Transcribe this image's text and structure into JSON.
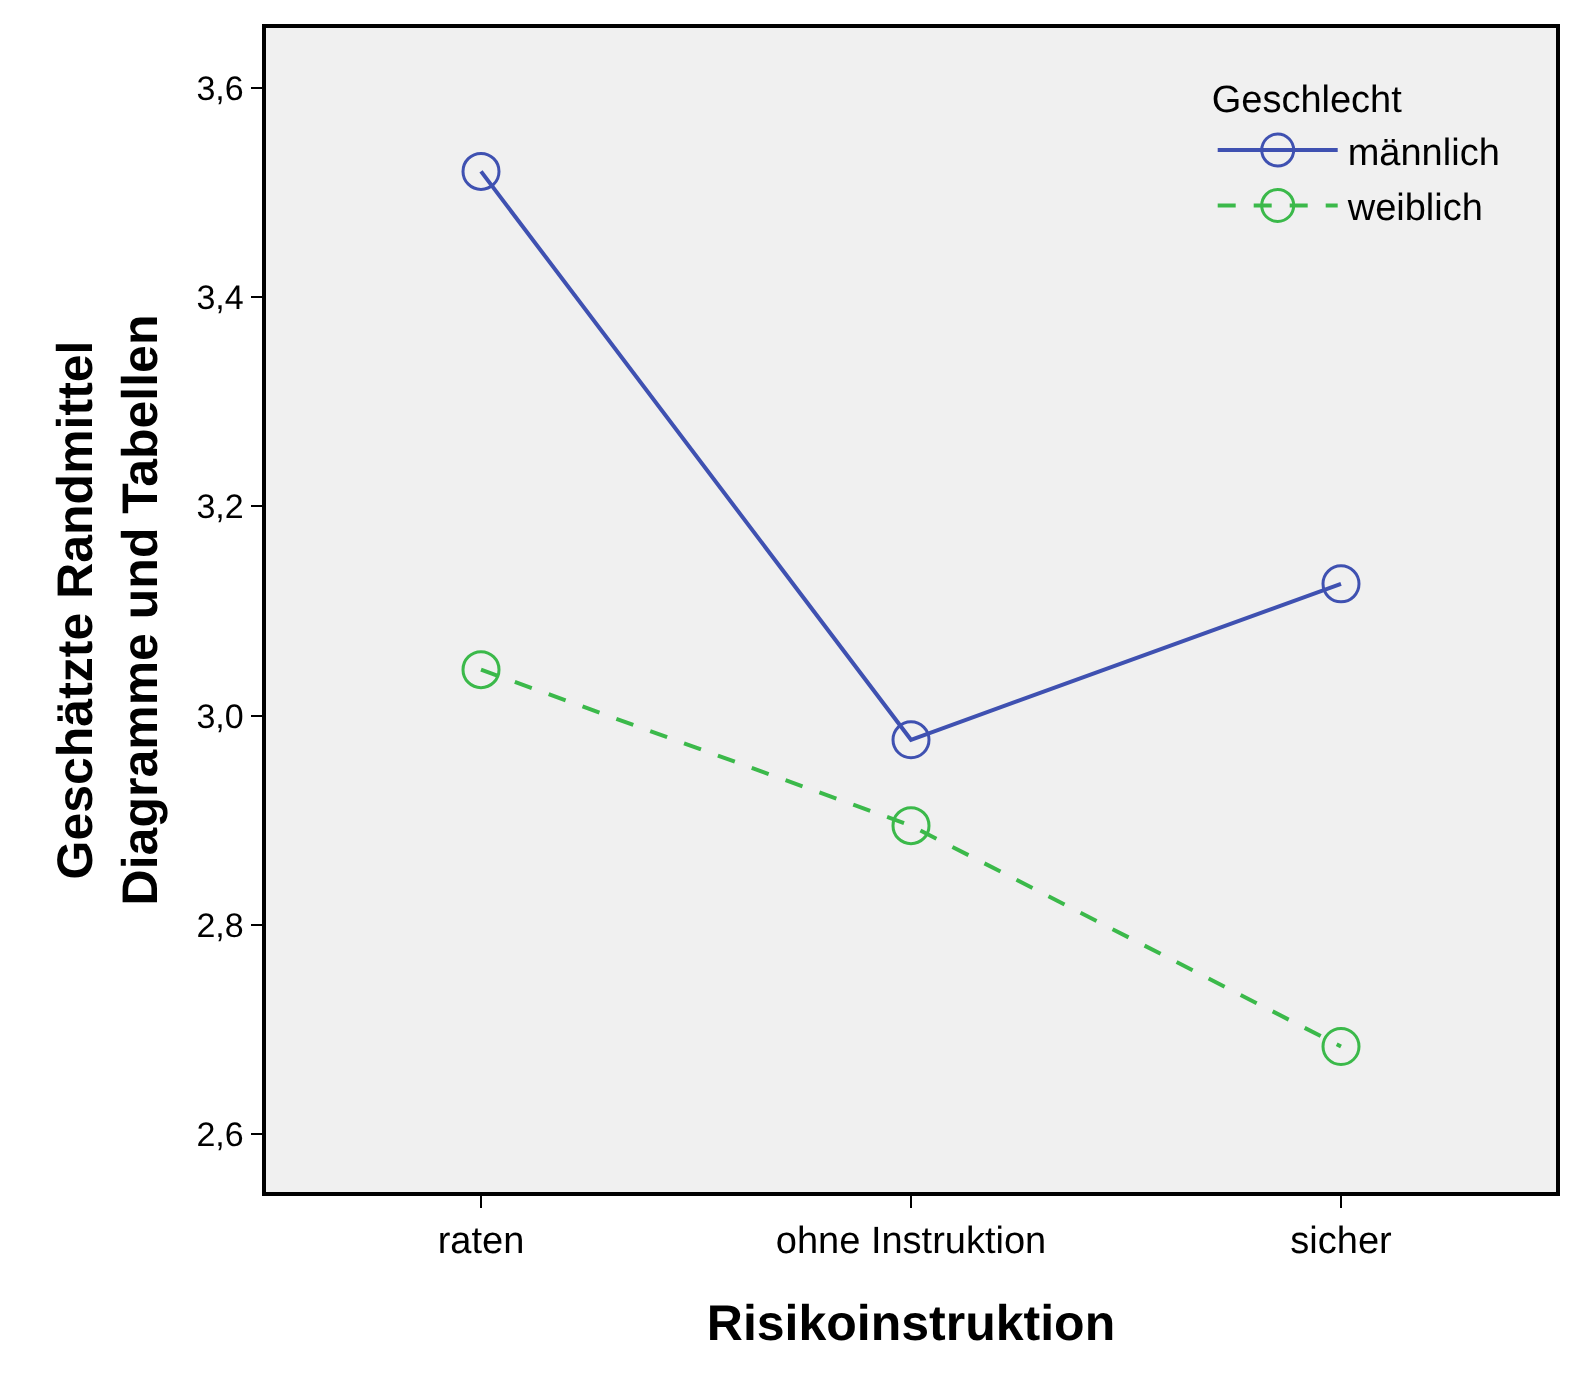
{
  "chart_data": {
    "type": "line",
    "xlabel": "Risikoinstruktion",
    "ylabel": "Geschätzte Randmittel\nDiagramme und Tabellen",
    "legend_title": "Geschlecht",
    "legend": "top right",
    "grid": false,
    "marker": "circle",
    "categories": [
      "raten",
      "ohne Instruktion",
      "sicher"
    ],
    "ylim": [
      2.545,
      3.657
    ],
    "yticks": [
      {
        "value": 2.6,
        "label": "2,6"
      },
      {
        "value": 2.8,
        "label": "2,8"
      },
      {
        "value": 3.0,
        "label": "3,0"
      },
      {
        "value": 3.2,
        "label": "3,2"
      },
      {
        "value": 3.4,
        "label": "3,4"
      },
      {
        "value": 3.6,
        "label": "3,6"
      }
    ],
    "series": [
      {
        "name": "männlich",
        "color": "#3f51b1",
        "values": [
          3.52,
          2.977,
          3.126
        ],
        "line_style": "solid"
      },
      {
        "name": "weiblich",
        "color": "#3bb94a",
        "values": [
          3.044,
          2.895,
          2.684
        ],
        "line_style": "dashed"
      }
    ]
  }
}
